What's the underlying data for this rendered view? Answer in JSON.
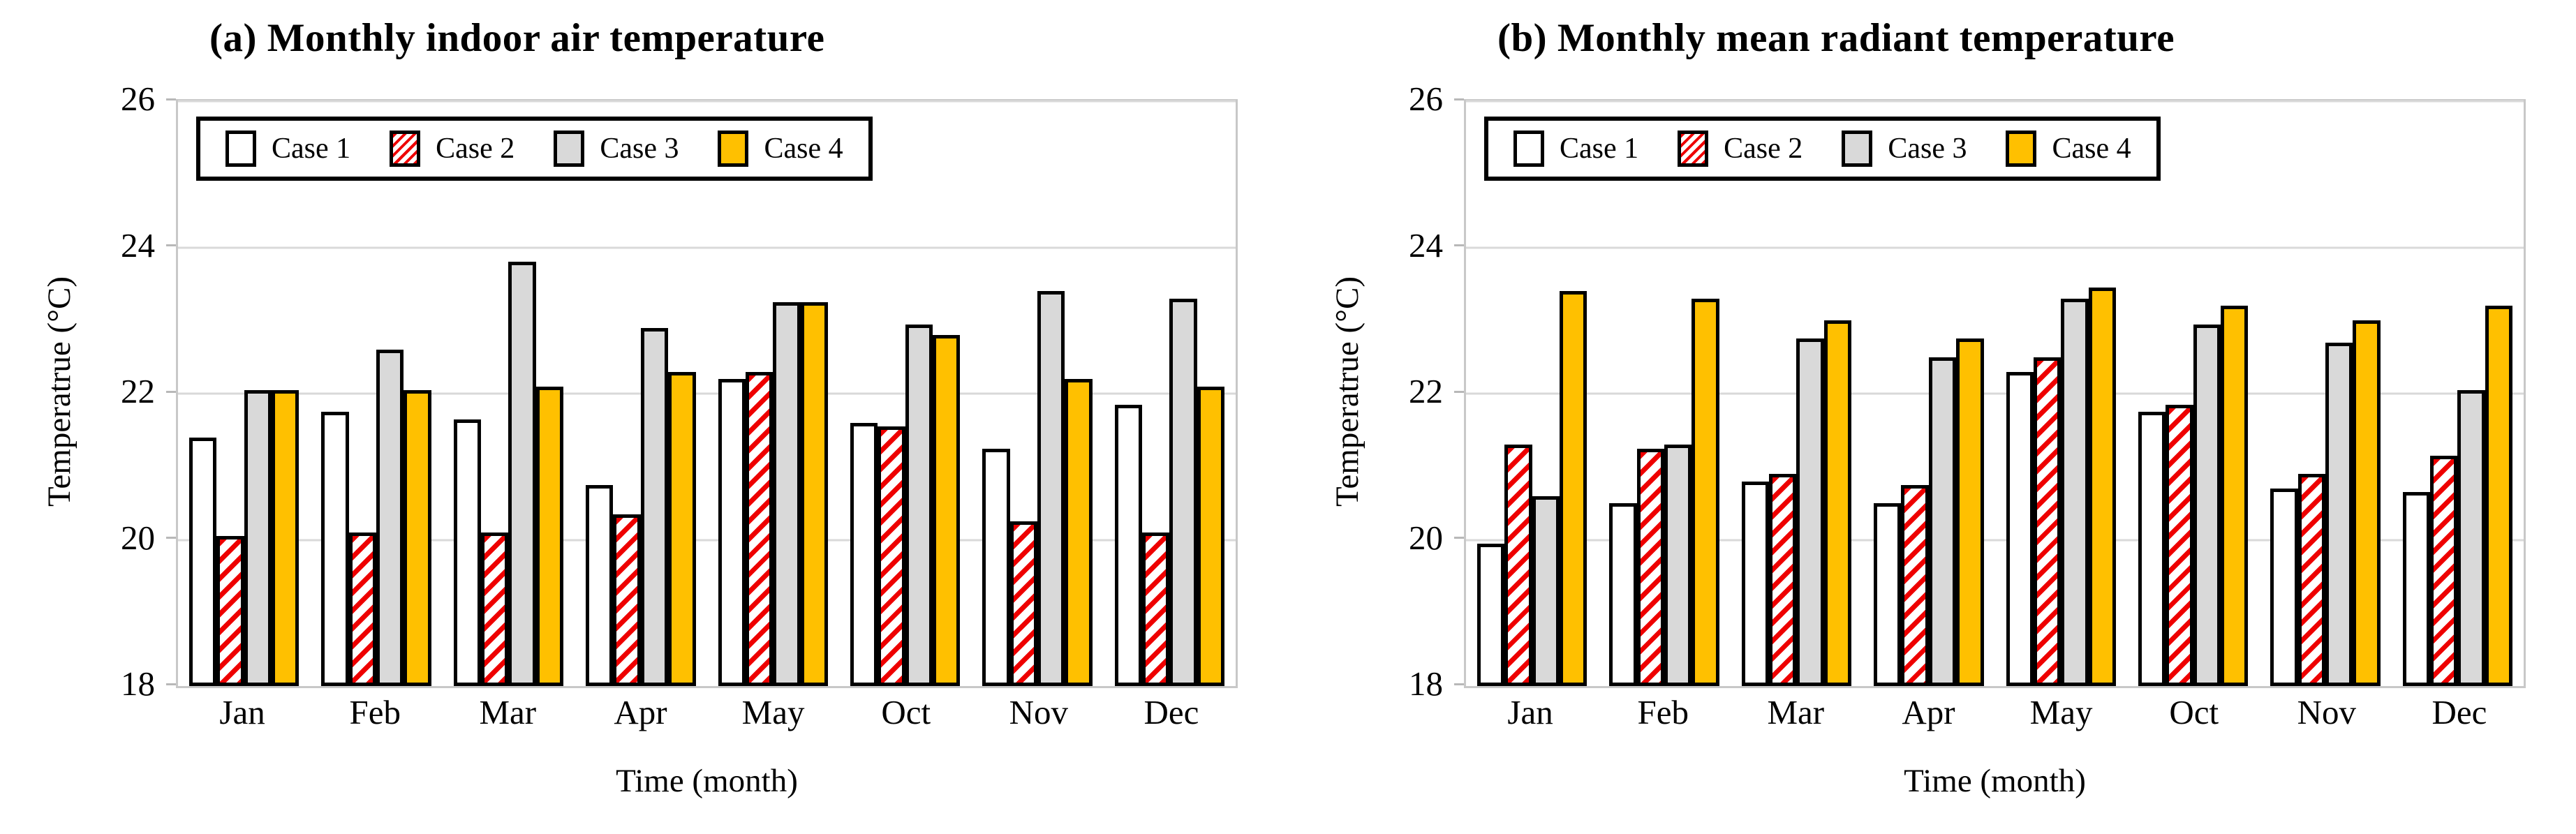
{
  "colors": {
    "case1_fill": "#ffffff",
    "case2_hatch": "#ee0000",
    "case3_fill": "#d9d9d9",
    "case4_fill": "#ffc000",
    "bar_border": "#000000",
    "gridline": "#d9d9d9",
    "plot_border": "#c8c8c8",
    "background": "#ffffff",
    "text": "#000000"
  },
  "chart_data": [
    {
      "type": "bar",
      "title": "(a) Monthly indoor air temperature",
      "xlabel": "Time (month)",
      "ylabel": "Temperatrue (°C)",
      "ylim": [
        18,
        26
      ],
      "yticks": [
        18,
        20,
        22,
        24,
        26
      ],
      "grid": "horizontal",
      "legend_position": "top-left-inside",
      "categories": [
        "Jan",
        "Feb",
        "Mar",
        "Apr",
        "May",
        "Oct",
        "Nov",
        "Dec"
      ],
      "series": [
        {
          "name": "Case 1",
          "style": "white",
          "values": [
            21.4,
            21.75,
            21.65,
            20.75,
            22.2,
            21.6,
            21.25,
            21.85
          ]
        },
        {
          "name": "Case 2",
          "style": "red-hatch",
          "values": [
            20.05,
            20.1,
            20.1,
            20.35,
            22.3,
            21.55,
            20.25,
            20.1
          ]
        },
        {
          "name": "Case 3",
          "style": "gray",
          "values": [
            22.05,
            22.6,
            23.8,
            22.9,
            23.25,
            22.95,
            23.4,
            23.3
          ]
        },
        {
          "name": "Case 4",
          "style": "gold",
          "values": [
            22.05,
            22.05,
            22.1,
            22.3,
            23.25,
            22.8,
            22.2,
            22.1
          ]
        }
      ]
    },
    {
      "type": "bar",
      "title": "(b) Monthly mean radiant temperature",
      "xlabel": "Time (month)",
      "ylabel": "Temperatrue (°C)",
      "ylim": [
        18,
        26
      ],
      "yticks": [
        18,
        20,
        22,
        24,
        26
      ],
      "grid": "horizontal",
      "legend_position": "top-left-inside",
      "categories": [
        "Jan",
        "Feb",
        "Mar",
        "Apr",
        "May",
        "Oct",
        "Nov",
        "Dec"
      ],
      "series": [
        {
          "name": "Case 1",
          "style": "white",
          "values": [
            19.95,
            20.5,
            20.8,
            20.5,
            22.3,
            21.75,
            20.7,
            20.65
          ]
        },
        {
          "name": "Case 2",
          "style": "red-hatch",
          "values": [
            21.3,
            21.25,
            20.9,
            20.75,
            22.5,
            21.85,
            20.9,
            21.15
          ]
        },
        {
          "name": "Case 3",
          "style": "gray",
          "values": [
            20.6,
            21.3,
            22.75,
            22.5,
            23.3,
            22.95,
            22.7,
            22.05
          ]
        },
        {
          "name": "Case 4",
          "style": "gold",
          "values": [
            23.4,
            23.3,
            23.0,
            22.75,
            23.45,
            23.2,
            23.0,
            23.2
          ]
        }
      ]
    }
  ]
}
